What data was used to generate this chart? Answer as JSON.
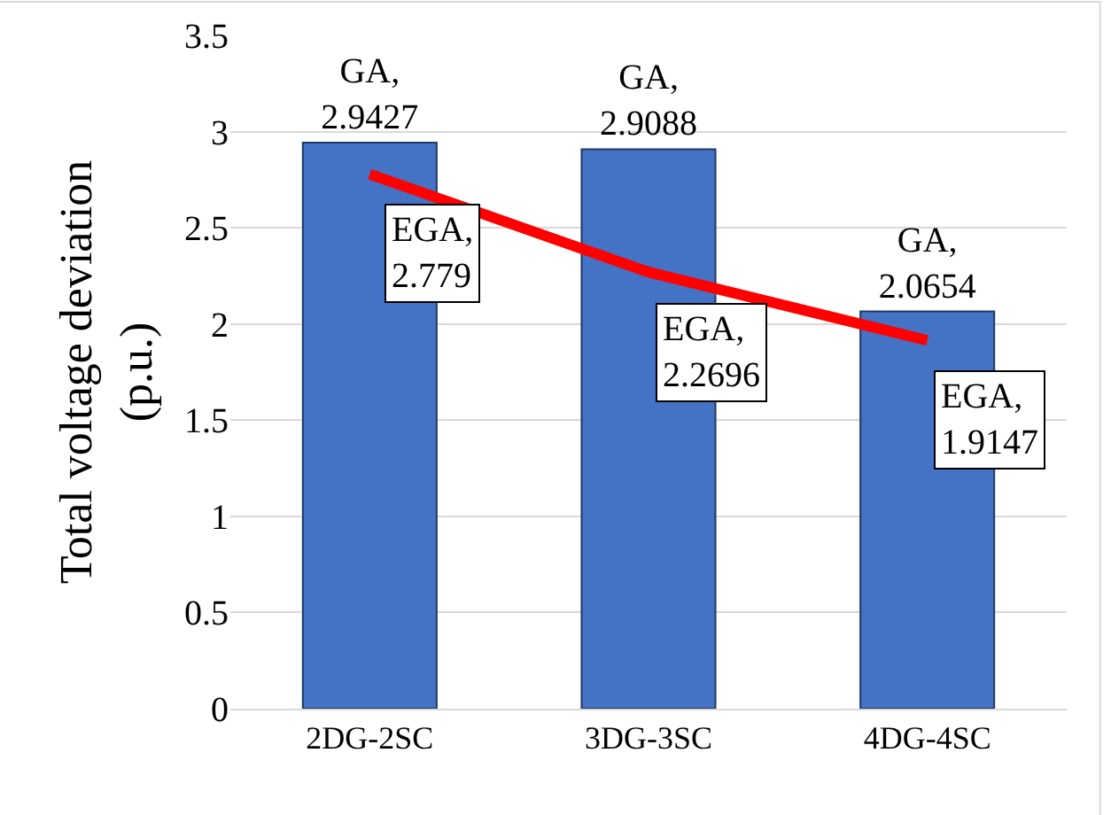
{
  "chart_data": {
    "type": "bar",
    "ylabel": "Total voltage deviation\n(p.u.)",
    "categories": [
      "2DG-2SC",
      "3DG-3SC",
      "4DG-4SC"
    ],
    "series": [
      {
        "color": "#4472c4",
        "values": [
          2.9427,
          2.9088,
          2.0654
        ],
        "value_labels": [
          "GA,\n2.9427",
          "GA,\n2.9088",
          "GA,\n2.0654"
        ]
      },
      {
        "type": "line",
        "color": "#ff0000",
        "values": [
          2.779,
          2.2696,
          1.9147
        ],
        "value_labels": [
          "EGA,\n2.779",
          "EGA,\n2.2696",
          "EGA,\n1.9147"
        ]
      }
    ],
    "ylim": [
      0,
      3.5
    ],
    "yticks": [
      0,
      0.5,
      1,
      1.5,
      2,
      2.5,
      3,
      3.5
    ],
    "grid": "y",
    "legend": false,
    "marker": "none",
    "line_style": "solid"
  }
}
